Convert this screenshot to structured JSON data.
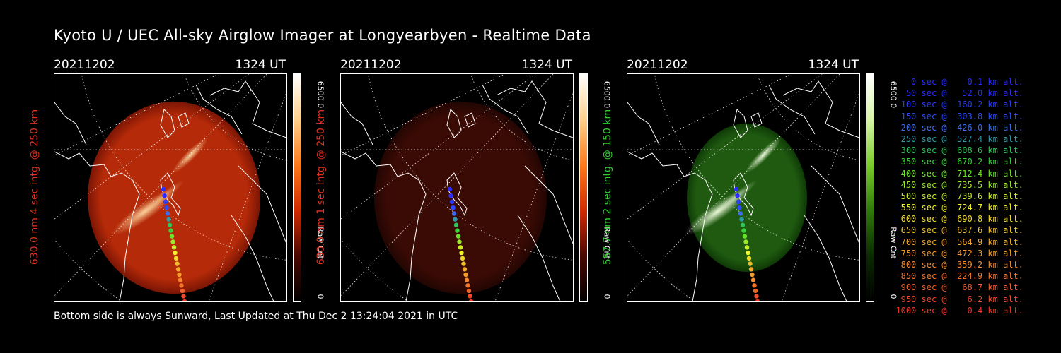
{
  "title": "Kyoto U / UEC All-sky Airglow Imager at Longyearbyen - Realtime Data",
  "footer": "Bottom side is always Sunward, Last Updated at Thu Dec  2 13:24:04 2021 in UTC",
  "panels": [
    {
      "date": "20211202",
      "time": "1324 UT",
      "ylabel": "630.0 nm  4 sec intg. @ 250 km",
      "label_color": "#e0301e",
      "cbar_max": "6500.0",
      "cbar_unit": "Raw Cnt",
      "cbar_min": "0",
      "tone": "red-bright",
      "colormap": [
        "#ffffff",
        "#ffcf8a",
        "#ff7a1a",
        "#d12a00",
        "#4a0800",
        "#000000"
      ]
    },
    {
      "date": "20211202",
      "time": "1324 UT",
      "ylabel": "630.0 nm  1 sec intg. @ 250 km",
      "label_color": "#e0301e",
      "cbar_max": "6500.0",
      "cbar_unit": "Raw Cnt",
      "cbar_min": "0",
      "tone": "red-dim",
      "colormap": [
        "#ffffff",
        "#ffcf8a",
        "#ff7a1a",
        "#d12a00",
        "#4a0800",
        "#000000"
      ]
    },
    {
      "date": "20211202",
      "time": "1324 UT",
      "ylabel": "557.7 nm  2 sec intg. @ 150 km",
      "label_color": "#2fd12f",
      "cbar_max": "6500.0",
      "cbar_unit": "Raw Cnt",
      "cbar_min": "0",
      "tone": "green",
      "colormap": [
        "#ffffff",
        "#d8f5a8",
        "#7acb2a",
        "#2f7a0a",
        "#0a2a00",
        "#000000"
      ]
    }
  ],
  "legend": [
    {
      "text": "   0 sec @    0.1 km alt.",
      "color": "#2a2aff"
    },
    {
      "text": "  50 sec @   52.0 km alt.",
      "color": "#2a2aff"
    },
    {
      "text": " 100 sec @  160.2 km alt.",
      "color": "#2a3cff"
    },
    {
      "text": " 150 sec @  303.8 km alt.",
      "color": "#2a4cff"
    },
    {
      "text": " 200 sec @  426.0 km alt.",
      "color": "#3a6cf0"
    },
    {
      "text": " 250 sec @  527.4 km alt.",
      "color": "#2f9aa8"
    },
    {
      "text": " 300 sec @  608.6 km alt.",
      "color": "#2fc35a"
    },
    {
      "text": " 350 sec @  670.2 km alt.",
      "color": "#3ad23a"
    },
    {
      "text": " 400 sec @  712.4 km alt.",
      "color": "#6ae22a"
    },
    {
      "text": " 450 sec @  735.5 km alt.",
      "color": "#9ae82a"
    },
    {
      "text": " 500 sec @  739.6 km alt.",
      "color": "#c8ee2a"
    },
    {
      "text": " 550 sec @  724.7 km alt.",
      "color": "#eef02a"
    },
    {
      "text": " 600 sec @  690.8 km alt.",
      "color": "#f2da2a"
    },
    {
      "text": " 650 sec @  637.6 km alt.",
      "color": "#f2c02a"
    },
    {
      "text": " 700 sec @  564.9 km alt.",
      "color": "#f2a82a"
    },
    {
      "text": " 750 sec @  472.3 km alt.",
      "color": "#f29a2a"
    },
    {
      "text": " 800 sec @  359.2 km alt.",
      "color": "#f2882a"
    },
    {
      "text": " 850 sec @  224.9 km alt.",
      "color": "#f2762a"
    },
    {
      "text": " 900 sec @   68.7 km alt.",
      "color": "#f2602a"
    },
    {
      "text": " 950 sec @    6.2 km alt.",
      "color": "#f24a2a"
    },
    {
      "text": "1000 sec @    0.4 km alt.",
      "color": "#f2342a"
    }
  ]
}
